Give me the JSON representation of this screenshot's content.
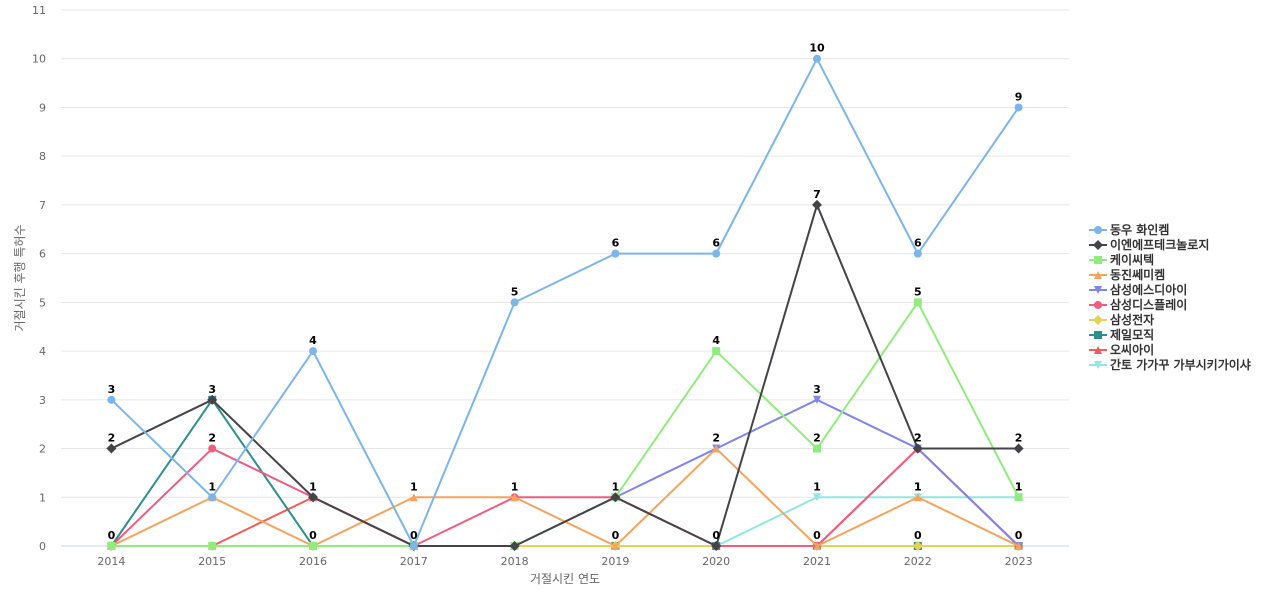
{
  "chart_data": {
    "type": "line",
    "title": "",
    "xlabel": "거절시킨 연도",
    "ylabel": "거절시킨 후행 특허수",
    "categories": [
      "2014",
      "2015",
      "2016",
      "2017",
      "2018",
      "2019",
      "2020",
      "2021",
      "2022",
      "2023"
    ],
    "ylim": [
      0,
      11
    ],
    "yticks": [
      0,
      1,
      2,
      3,
      4,
      5,
      6,
      7,
      8,
      9,
      10,
      11
    ],
    "grid": true,
    "legend_position": "right",
    "series": [
      {
        "name": "동우 화인켐",
        "color": "#7cb5ec",
        "marker": "circle",
        "values": [
          3,
          1,
          4,
          0,
          5,
          6,
          6,
          10,
          6,
          9
        ],
        "labeled": [
          0,
          2,
          4,
          5,
          6,
          7,
          8,
          9
        ]
      },
      {
        "name": "이엔에프테크놀로지",
        "color": "#434348",
        "marker": "diamond",
        "values": [
          2,
          3,
          1,
          0,
          0,
          1,
          0,
          7,
          2,
          2
        ],
        "labeled": [
          0,
          1,
          2,
          7,
          8,
          9
        ]
      },
      {
        "name": "케이씨텍",
        "color": "#90ed7d",
        "marker": "square",
        "values": [
          0,
          0,
          0,
          0,
          0,
          1,
          4,
          2,
          5,
          1
        ],
        "labeled": [
          6,
          7,
          8,
          9
        ]
      },
      {
        "name": "동진쎄미켐",
        "color": "#f7a35c",
        "marker": "triangle",
        "values": [
          0,
          1,
          0,
          1,
          1,
          0,
          2,
          0,
          1,
          0
        ],
        "labeled": [
          1,
          3,
          5,
          6,
          8
        ]
      },
      {
        "name": "삼성에스디아이",
        "color": "#8085e9",
        "marker": "triangle-down",
        "values": [
          0,
          0,
          0,
          0,
          0,
          1,
          2,
          3,
          2,
          0
        ],
        "labeled": [
          7
        ]
      },
      {
        "name": "삼성디스플레이",
        "color": "#f15c80",
        "marker": "circle",
        "values": [
          0,
          2,
          1,
          0,
          1,
          1,
          0,
          0,
          2,
          0
        ],
        "labeled": [
          1,
          4,
          5,
          8
        ]
      },
      {
        "name": "삼성전자",
        "color": "#e4d354",
        "marker": "diamond",
        "values": [
          0,
          0,
          0,
          0,
          0,
          0,
          0,
          0,
          0,
          0
        ],
        "labeled": []
      },
      {
        "name": "제일모직",
        "color": "#2b908f",
        "marker": "square",
        "values": [
          0,
          3,
          0,
          0,
          0,
          0,
          0,
          0,
          0,
          0
        ],
        "labeled": [
          0,
          2,
          6,
          7,
          8,
          9
        ]
      },
      {
        "name": "오씨아이",
        "color": "#f45b5b",
        "marker": "triangle",
        "values": [
          0,
          0,
          1,
          0,
          0,
          0,
          0,
          0,
          2,
          0
        ],
        "labeled": [
          3
        ]
      },
      {
        "name": "간토 가가꾸 가부시키가이샤",
        "color": "#91e8e1",
        "marker": "triangle-down",
        "values": [
          0,
          0,
          0,
          0,
          0,
          0,
          0,
          1,
          1,
          1
        ],
        "labeled": [
          7,
          8,
          9
        ]
      }
    ]
  }
}
